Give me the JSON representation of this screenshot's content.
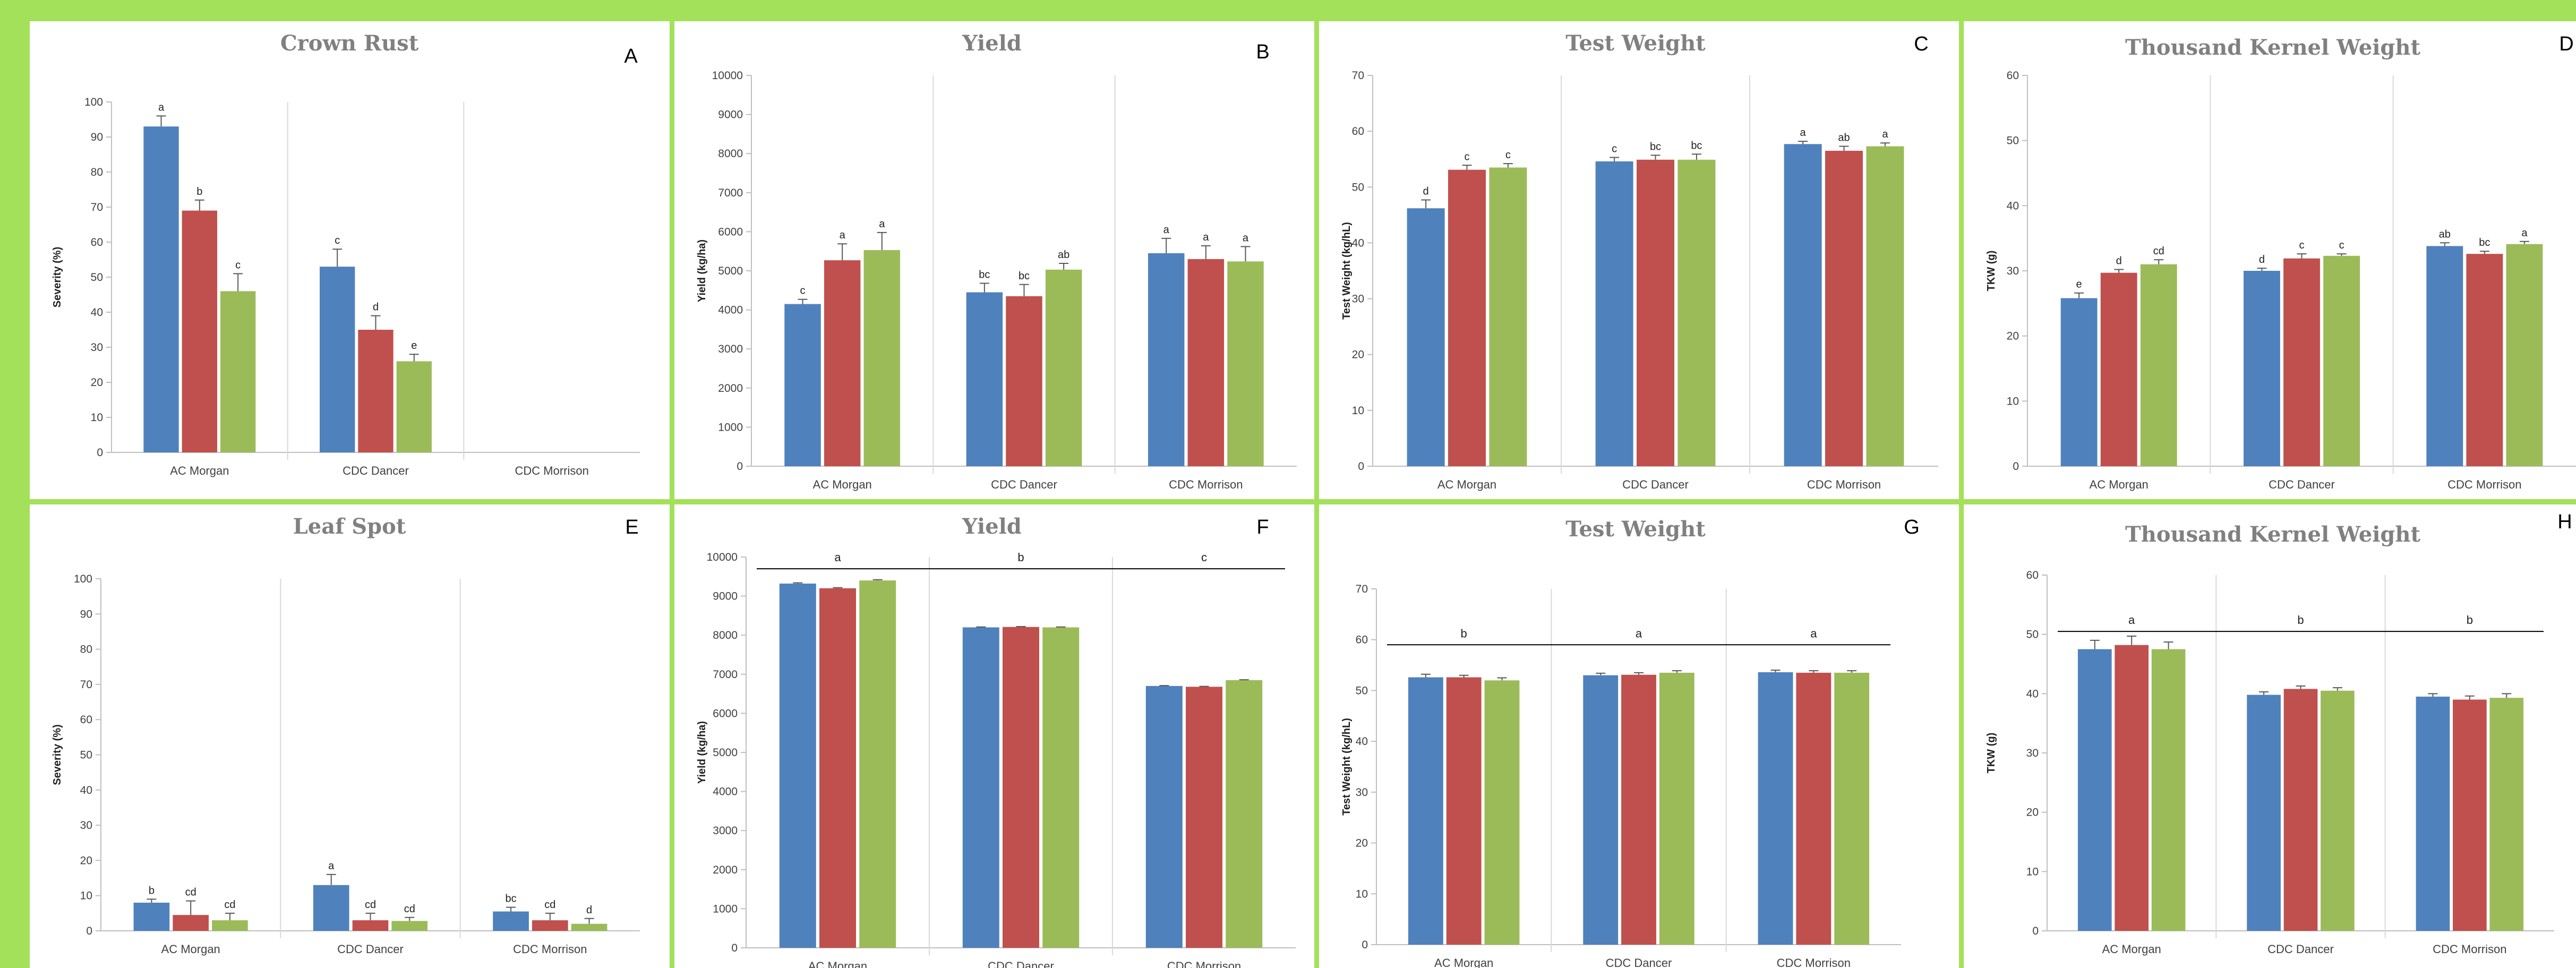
{
  "chart_data": [
    {
      "panel": "A",
      "type": "bar",
      "title": "Crown Rust",
      "ylabel": "Severity (%)",
      "ylim": [
        0,
        100
      ],
      "ytick_step": 10,
      "categories": [
        "AC Morgan",
        "CDC Dancer",
        "CDC Morrison"
      ],
      "series": [
        {
          "values": [
            93,
            53,
            null
          ],
          "errors": [
            3,
            5,
            null
          ],
          "labels": [
            "a",
            "c",
            ""
          ]
        },
        {
          "values": [
            69,
            35,
            null
          ],
          "errors": [
            3,
            4,
            null
          ],
          "labels": [
            "b",
            "d",
            ""
          ]
        },
        {
          "values": [
            46,
            26,
            null
          ],
          "errors": [
            5,
            2,
            null
          ],
          "labels": [
            "c",
            "e",
            ""
          ]
        }
      ],
      "colors": [
        "#4f81bd",
        "#c0504d",
        "#9bbb59"
      ],
      "grid": false
    },
    {
      "panel": "B",
      "type": "bar",
      "title": "Yield",
      "ylabel": "Yield (kg/ha)",
      "ylim": [
        0,
        10000
      ],
      "ytick_step": 1000,
      "categories": [
        "AC Morgan",
        "CDC Dancer",
        "CDC Morrison"
      ],
      "series": [
        {
          "values": [
            4150,
            4450,
            5450
          ],
          "errors": [
            120,
            230,
            380
          ],
          "labels": [
            "c",
            "bc",
            "a"
          ]
        },
        {
          "values": [
            5270,
            4350,
            5300
          ],
          "errors": [
            420,
            300,
            340
          ],
          "labels": [
            "a",
            "bc",
            "a"
          ]
        },
        {
          "values": [
            5530,
            5030,
            5240
          ],
          "errors": [
            450,
            160,
            380
          ],
          "labels": [
            "a",
            "ab",
            "a"
          ]
        }
      ],
      "colors": [
        "#4f81bd",
        "#c0504d",
        "#9bbb59"
      ],
      "grid": false
    },
    {
      "panel": "C",
      "type": "bar",
      "title": "Test Weight",
      "ylabel": "Test Weight (kg/hL)",
      "ylim": [
        0,
        70
      ],
      "ytick_step": 10,
      "categories": [
        "AC Morgan",
        "CDC Dancer",
        "CDC Morrison"
      ],
      "series": [
        {
          "values": [
            46.2,
            54.6,
            57.7
          ],
          "errors": [
            1.5,
            0.7,
            0.5
          ],
          "labels": [
            "d",
            "c",
            "a"
          ]
        },
        {
          "values": [
            53.1,
            54.9,
            56.5
          ],
          "errors": [
            0.8,
            0.8,
            0.8
          ],
          "labels": [
            "c",
            "bc",
            "ab"
          ]
        },
        {
          "values": [
            53.5,
            54.9,
            57.3
          ],
          "errors": [
            0.7,
            1.0,
            0.6
          ],
          "labels": [
            "c",
            "bc",
            "a"
          ]
        }
      ],
      "colors": [
        "#4f81bd",
        "#c0504d",
        "#9bbb59"
      ],
      "grid": false
    },
    {
      "panel": "D",
      "type": "bar",
      "title": "Thousand Kernel Weight",
      "ylabel": "TKW (g)",
      "ylim": [
        0,
        60
      ],
      "ytick_step": 10,
      "categories": [
        "AC Morgan",
        "CDC Dancer",
        "CDC Morrison"
      ],
      "series": [
        {
          "values": [
            25.8,
            30.0,
            33.8
          ],
          "errors": [
            0.8,
            0.4,
            0.5
          ],
          "labels": [
            "e",
            "d",
            "ab"
          ]
        },
        {
          "values": [
            29.7,
            31.9,
            32.6
          ],
          "errors": [
            0.5,
            0.7,
            0.4
          ],
          "labels": [
            "d",
            "c",
            "bc"
          ]
        },
        {
          "values": [
            31.0,
            32.3,
            34.1
          ],
          "errors": [
            0.7,
            0.3,
            0.4
          ],
          "labels": [
            "cd",
            "c",
            "a"
          ]
        }
      ],
      "colors": [
        "#4f81bd",
        "#c0504d",
        "#9bbb59"
      ],
      "grid": false
    },
    {
      "panel": "E",
      "type": "bar",
      "title": "Leaf Spot",
      "ylabel": "Severity (%)",
      "ylim": [
        0,
        100
      ],
      "ytick_step": 10,
      "categories": [
        "AC Morgan",
        "CDC Dancer",
        "CDC Morrison"
      ],
      "series": [
        {
          "values": [
            8,
            13,
            5.5
          ],
          "errors": [
            1,
            3,
            1.2
          ],
          "labels": [
            "b",
            "a",
            "bc"
          ]
        },
        {
          "values": [
            4.5,
            3,
            3
          ],
          "errors": [
            4,
            2,
            2
          ],
          "labels": [
            "cd",
            "cd",
            "cd"
          ]
        },
        {
          "values": [
            3,
            2.8,
            2
          ],
          "errors": [
            2,
            1,
            1.5
          ],
          "labels": [
            "cd",
            "cd",
            "d"
          ]
        }
      ],
      "colors": [
        "#4f81bd",
        "#c0504d",
        "#9bbb59"
      ],
      "grid": false
    },
    {
      "panel": "F",
      "type": "bar",
      "title": "Yield",
      "ylabel": "Yield (kg/ha)",
      "ylim": [
        0,
        10000
      ],
      "ytick_step": 1000,
      "categories": [
        "AC Morgan",
        "CDC Dancer",
        "CDC Morrison"
      ],
      "series": [
        {
          "values": [
            9320,
            8200,
            6700
          ],
          "errors": [
            20,
            10,
            10
          ],
          "labels": [
            "",
            "",
            ""
          ]
        },
        {
          "values": [
            9200,
            8210,
            6680
          ],
          "errors": [
            15,
            10,
            10
          ],
          "labels": [
            "",
            "",
            ""
          ]
        },
        {
          "values": [
            9400,
            8200,
            6850
          ],
          "errors": [
            20,
            10,
            10
          ],
          "labels": [
            "",
            "",
            ""
          ]
        }
      ],
      "group_labels": [
        "a",
        "b",
        "c"
      ],
      "group_line_value": 9700,
      "colors": [
        "#4f81bd",
        "#c0504d",
        "#9bbb59"
      ],
      "grid": false
    },
    {
      "panel": "G",
      "type": "bar",
      "title": "Test Weight",
      "ylabel": "Test Weight (kg/hL)",
      "ylim": [
        0,
        70
      ],
      "ytick_step": 10,
      "categories": [
        "AC Morgan",
        "CDC Dancer",
        "CDC Morrison"
      ],
      "series": [
        {
          "values": [
            52.6,
            53.0,
            53.6
          ],
          "errors": [
            0.6,
            0.4,
            0.4
          ],
          "labels": [
            "",
            "",
            ""
          ]
        },
        {
          "values": [
            52.6,
            53.1,
            53.5
          ],
          "errors": [
            0.4,
            0.4,
            0.4
          ],
          "labels": [
            "",
            "",
            ""
          ]
        },
        {
          "values": [
            52.0,
            53.5,
            53.5
          ],
          "errors": [
            0.5,
            0.4,
            0.4
          ],
          "labels": [
            "",
            "",
            ""
          ]
        }
      ],
      "group_labels": [
        "b",
        "a",
        "a"
      ],
      "group_line_value": 59,
      "colors": [
        "#4f81bd",
        "#c0504d",
        "#9bbb59"
      ],
      "grid": false
    },
    {
      "panel": "H",
      "type": "bar",
      "title": "Thousand Kernel Weight",
      "ylabel": "TKW (g)",
      "ylim": [
        0,
        60
      ],
      "ytick_step": 10,
      "categories": [
        "AC Morgan",
        "CDC Dancer",
        "CDC Morrison"
      ],
      "series": [
        {
          "values": [
            47.5,
            39.8,
            39.5
          ],
          "errors": [
            1.5,
            0.5,
            0.5
          ],
          "labels": [
            "",
            "",
            ""
          ]
        },
        {
          "values": [
            48.2,
            40.8,
            39.0
          ],
          "errors": [
            1.5,
            0.5,
            0.6
          ],
          "labels": [
            "",
            "",
            ""
          ]
        },
        {
          "values": [
            47.5,
            40.5,
            39.3
          ],
          "errors": [
            1.2,
            0.5,
            0.7
          ],
          "labels": [
            "",
            "",
            ""
          ]
        }
      ],
      "group_labels": [
        "a",
        "b",
        "b"
      ],
      "group_line_value": 50.5,
      "colors": [
        "#4f81bd",
        "#c0504d",
        "#9bbb59"
      ],
      "grid": false
    }
  ]
}
